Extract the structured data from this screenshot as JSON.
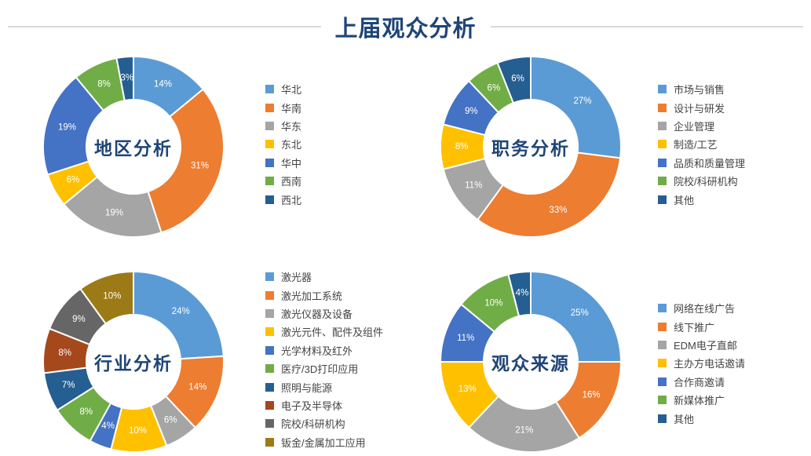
{
  "page_title": "上届观众分析",
  "header_rule_color": "#D9D9D9",
  "accent_text_color": "#1F4577",
  "legend_text_color": "#444444",
  "pct_label_color": "#FFFFFF",
  "chart_data": [
    {
      "type": "pie",
      "variant": "donut",
      "title": "地区分析",
      "unit": "%",
      "start_angle_deg": 0,
      "direction": "clockwise",
      "legend_position": "right",
      "labels": [
        "华北",
        "华南",
        "华东",
        "东北",
        "华中",
        "西南",
        "西北"
      ],
      "values": [
        14,
        31,
        19,
        6,
        19,
        8,
        3
      ],
      "colors": [
        "#5B9BD5",
        "#ED7D31",
        "#A5A5A5",
        "#FFC000",
        "#4472C4",
        "#70AD47",
        "#255E91"
      ]
    },
    {
      "type": "pie",
      "variant": "donut",
      "title": "职务分析",
      "unit": "%",
      "start_angle_deg": 0,
      "direction": "clockwise",
      "legend_position": "right",
      "labels": [
        "市场与销售",
        "设计与研发",
        "企业管理",
        "制造/工艺",
        "品质和质量管理",
        "院校/科研机构",
        "其他"
      ],
      "values": [
        27,
        33,
        11,
        8,
        9,
        6,
        6
      ],
      "colors": [
        "#5B9BD5",
        "#ED7D31",
        "#A5A5A5",
        "#FFC000",
        "#4472C4",
        "#70AD47",
        "#255E91"
      ]
    },
    {
      "type": "pie",
      "variant": "donut",
      "title": "行业分析",
      "unit": "%",
      "start_angle_deg": 0,
      "direction": "clockwise",
      "legend_position": "right",
      "labels": [
        "激光器",
        "激光加工系统",
        "激光仪器及设备",
        "激光元件、配件及组件",
        "光学材料及红外",
        "医疗/3D打印应用",
        "照明与能源",
        "电子及半导体",
        "院校/科研机构",
        "钣金/金属加工应用"
      ],
      "values": [
        24,
        14,
        6,
        10,
        4,
        8,
        7,
        8,
        9,
        10
      ],
      "colors": [
        "#5B9BD5",
        "#ED7D31",
        "#A5A5A5",
        "#FFC000",
        "#4472C4",
        "#70AD47",
        "#255E91",
        "#A5481C",
        "#666666",
        "#9C7A16"
      ]
    },
    {
      "type": "pie",
      "variant": "donut",
      "title": "观众来源",
      "unit": "%",
      "start_angle_deg": 0,
      "direction": "clockwise",
      "legend_position": "right",
      "labels": [
        "网络在线广告",
        "线下推广",
        "EDM电子直邮",
        "主办方电话邀请",
        "合作商邀请",
        "新媒体推广",
        "其他"
      ],
      "values": [
        25,
        16,
        21,
        13,
        11,
        10,
        4
      ],
      "colors": [
        "#5B9BD5",
        "#ED7D31",
        "#A5A5A5",
        "#FFC000",
        "#4472C4",
        "#70AD47",
        "#255E91"
      ]
    }
  ]
}
